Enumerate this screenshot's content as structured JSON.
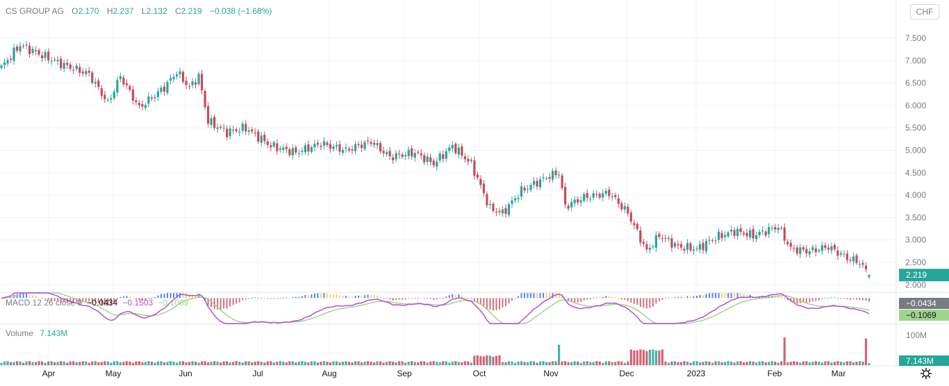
{
  "symbol": "CS GROUP AG",
  "ohlc": {
    "o_label": "O",
    "o": "2.170",
    "h_label": "H",
    "h": "2.237",
    "l_label": "L",
    "l": "2.132",
    "c_label": "C",
    "c": "2.219",
    "change": "−0.038 (−1.68%)"
  },
  "currency": "CHF",
  "price_axis_ticks": [
    "7.500",
    "7.000",
    "6.500",
    "6.000",
    "5.500",
    "5.000",
    "4.500",
    "4.000",
    "3.500",
    "3.000",
    "2.500",
    "2.000"
  ],
  "last_price_label": "2.219",
  "macd": {
    "label": "MACD 12 26 close 9",
    "values": [
      "−0.0434",
      "−0.1503",
      "−0.1069"
    ],
    "axis_labels": [
      "−0.0434",
      "−0.1069"
    ]
  },
  "volume": {
    "label": "Volume",
    "value": "7.143M",
    "axis_labels": [
      "100M",
      "7.143M"
    ]
  },
  "x_axis_labels": [
    "Apr",
    "May",
    "Jun",
    "Jul",
    "Aug",
    "Sep",
    "Oct",
    "Nov",
    "Dec",
    "2023",
    "Feb",
    "Mar"
  ],
  "colors": {
    "up": "#26a69a",
    "down": "#c94a5c",
    "macd_line": "#b44fd6",
    "signal_line": "#9fd48a",
    "grid": "#f0f3fa"
  },
  "chart_data": {
    "type": "candlestick",
    "title": "CS GROUP AG",
    "price_range": [
      1.85,
      7.95
    ],
    "x_labels": [
      "Apr",
      "May",
      "Jun",
      "Jul",
      "Aug",
      "Sep",
      "Oct",
      "Nov",
      "Dec",
      "2023",
      "Feb",
      "Mar"
    ],
    "close_anchors": [
      [
        0,
        6.85
      ],
      [
        6,
        7.35
      ],
      [
        12,
        7.15
      ],
      [
        20,
        6.9
      ],
      [
        28,
        6.7
      ],
      [
        34,
        6.05
      ],
      [
        38,
        6.65
      ],
      [
        44,
        5.95
      ],
      [
        52,
        6.4
      ],
      [
        56,
        6.75
      ],
      [
        60,
        6.4
      ],
      [
        63,
        6.65
      ],
      [
        66,
        5.65
      ],
      [
        72,
        5.4
      ],
      [
        78,
        5.5
      ],
      [
        86,
        5.1
      ],
      [
        94,
        4.95
      ],
      [
        102,
        5.15
      ],
      [
        110,
        5.0
      ],
      [
        118,
        5.2
      ],
      [
        124,
        4.85
      ],
      [
        132,
        4.95
      ],
      [
        138,
        4.7
      ],
      [
        144,
        5.1
      ],
      [
        150,
        4.7
      ],
      [
        156,
        3.7
      ],
      [
        160,
        3.6
      ],
      [
        166,
        4.1
      ],
      [
        174,
        4.4
      ],
      [
        178,
        4.5
      ],
      [
        180,
        3.75
      ],
      [
        186,
        3.95
      ],
      [
        194,
        4.05
      ],
      [
        200,
        3.6
      ],
      [
        206,
        2.75
      ],
      [
        210,
        3.1
      ],
      [
        216,
        2.85
      ],
      [
        222,
        2.8
      ],
      [
        228,
        3.05
      ],
      [
        234,
        3.2
      ],
      [
        240,
        3.1
      ],
      [
        248,
        3.3
      ],
      [
        252,
        2.8
      ],
      [
        258,
        2.75
      ],
      [
        264,
        2.85
      ],
      [
        270,
        2.6
      ],
      [
        274,
        2.5
      ],
      [
        277,
        2.219
      ]
    ],
    "last": {
      "open": 2.17,
      "high": 2.237,
      "low": 2.132,
      "close": 2.219
    },
    "macd_range": [
      -0.25,
      0.05
    ],
    "volume_axis_max": 100,
    "volume_unit": "M",
    "last_volume": 7.143
  }
}
